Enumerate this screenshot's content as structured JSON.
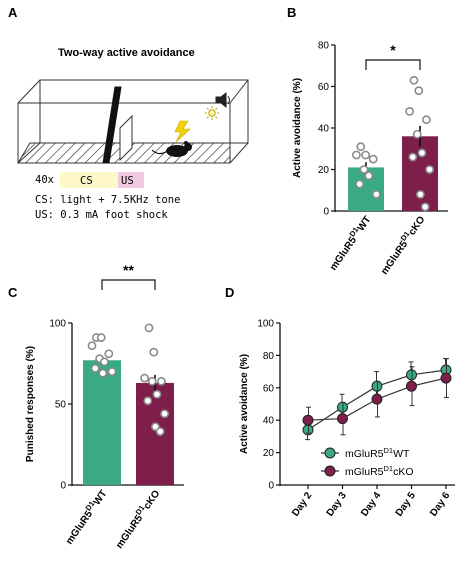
{
  "panel_labels": {
    "a": "A",
    "b": "B",
    "c": "C",
    "d": "D"
  },
  "panelA": {
    "title": "Two-way active avoidance",
    "trials": "40x",
    "cs_box": "CS",
    "us_box": "US",
    "cs_text": "CS: light + 7.5KHz tone",
    "us_text": "US: 0.3 mA foot shock"
  },
  "colors": {
    "wt": "#3aaa84",
    "cko": "#7d1f4a",
    "cs_fill": "#fff8c8",
    "us_fill": "#f0c8e0"
  },
  "chart_data": [
    {
      "type": "bar",
      "panel": "B",
      "ylabel": "Active avoidance (%)",
      "ylim": [
        0,
        80
      ],
      "yticks": [
        "0",
        "20",
        "40",
        "60",
        "80"
      ],
      "categories": [
        {
          "base": "mGluR5",
          "sup": "D1",
          "suffix": "WT"
        },
        {
          "base": "mGluR5",
          "sup": "D1",
          "suffix": "cKO"
        }
      ],
      "values": [
        21,
        36
      ],
      "errors": [
        2.5,
        5
      ],
      "points": [
        [
          31,
          27,
          27,
          25,
          20,
          17,
          13,
          8
        ],
        [
          63,
          58,
          48,
          44,
          37,
          28,
          26,
          20,
          8,
          2
        ]
      ],
      "significance": "*"
    },
    {
      "type": "bar",
      "panel": "C",
      "ylabel": "Punished responses (%)",
      "ylim": [
        0,
        100
      ],
      "yticks": [
        "0",
        "50",
        "100"
      ],
      "categories": [
        {
          "base": "mGluR5",
          "sup": "D1",
          "suffix": "WT"
        },
        {
          "base": "mGluR5",
          "sup": "D1",
          "suffix": "cKO"
        }
      ],
      "values": [
        77,
        63
      ],
      "errors": [
        2,
        5
      ],
      "points": [
        [
          91,
          91,
          86,
          81,
          78,
          76,
          72,
          70,
          69
        ],
        [
          97,
          82,
          66,
          64,
          64,
          56,
          52,
          44,
          36,
          33
        ]
      ],
      "significance": "**"
    },
    {
      "type": "line",
      "panel": "D",
      "ylabel": "Active avoidance (%)",
      "ylim": [
        0,
        100
      ],
      "yticks": [
        "0",
        "20",
        "40",
        "60",
        "80",
        "100"
      ],
      "x": [
        "Day 2",
        "Day 3",
        "Day 4",
        "Day 5",
        "Day 6"
      ],
      "series": [
        {
          "name": {
            "base": "mGluR5",
            "sup": "D1",
            "suffix": "WT"
          },
          "values": [
            34,
            48,
            61,
            68,
            71
          ],
          "errors": [
            6,
            8,
            9,
            8,
            7
          ]
        },
        {
          "name": {
            "base": "mGluR5",
            "sup": "D1",
            "suffix": "cKO"
          },
          "values": [
            40,
            41,
            53,
            61,
            66
          ],
          "errors": [
            8,
            10,
            11,
            12,
            12
          ]
        }
      ],
      "legend": "bottom-right"
    }
  ]
}
